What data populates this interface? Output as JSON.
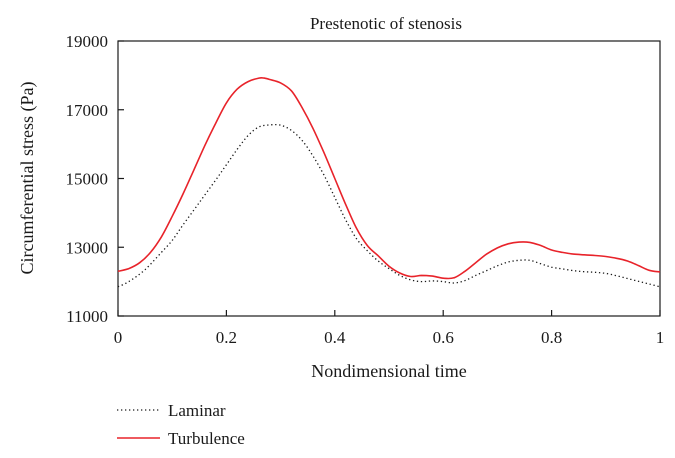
{
  "chart_data": {
    "type": "line",
    "title": "Prestenotic of stenosis",
    "xlabel": "Nondimensional time",
    "ylabel": "Circumferential stress (Pa)",
    "xlim": [
      0,
      1
    ],
    "ylim": [
      11000,
      19000
    ],
    "x_ticks": [
      0,
      0.2,
      0.4,
      0.6,
      0.8,
      1
    ],
    "x_tick_labels": [
      "0",
      "0.2",
      "0.4",
      "0.6",
      "0.8",
      "1"
    ],
    "y_ticks": [
      11000,
      13000,
      15000,
      17000,
      19000
    ],
    "y_tick_labels": [
      "11000",
      "13000",
      "15000",
      "17000",
      "19000"
    ],
    "grid": false,
    "legend_position": "bottom-left",
    "series": [
      {
        "name": "Laminar",
        "color": "#1a1a1a",
        "style": "dotted",
        "x": [
          0,
          0.02,
          0.05,
          0.08,
          0.1,
          0.12,
          0.15,
          0.18,
          0.2,
          0.22,
          0.24,
          0.26,
          0.28,
          0.3,
          0.32,
          0.34,
          0.36,
          0.38,
          0.4,
          0.42,
          0.44,
          0.46,
          0.48,
          0.5,
          0.52,
          0.54,
          0.56,
          0.58,
          0.6,
          0.62,
          0.64,
          0.66,
          0.68,
          0.7,
          0.72,
          0.74,
          0.76,
          0.78,
          0.8,
          0.82,
          0.84,
          0.86,
          0.88,
          0.9,
          0.92,
          0.94,
          0.96,
          0.98,
          1.0
        ],
        "y": [
          11850,
          12000,
          12350,
          12850,
          13200,
          13650,
          14300,
          14950,
          15400,
          15850,
          16250,
          16500,
          16560,
          16550,
          16400,
          16100,
          15650,
          15100,
          14450,
          13800,
          13250,
          12900,
          12600,
          12380,
          12180,
          12050,
          12000,
          12020,
          12000,
          11960,
          12030,
          12180,
          12320,
          12460,
          12570,
          12620,
          12620,
          12520,
          12420,
          12370,
          12320,
          12290,
          12270,
          12240,
          12170,
          12090,
          12010,
          11930,
          11850
        ]
      },
      {
        "name": "Turbulence",
        "color": "#e8232a",
        "style": "solid",
        "x": [
          0,
          0.02,
          0.04,
          0.06,
          0.08,
          0.1,
          0.12,
          0.14,
          0.16,
          0.18,
          0.2,
          0.22,
          0.24,
          0.26,
          0.27,
          0.28,
          0.3,
          0.32,
          0.34,
          0.36,
          0.38,
          0.4,
          0.42,
          0.44,
          0.46,
          0.48,
          0.5,
          0.52,
          0.54,
          0.56,
          0.58,
          0.6,
          0.62,
          0.64,
          0.66,
          0.68,
          0.7,
          0.72,
          0.74,
          0.76,
          0.78,
          0.8,
          0.82,
          0.84,
          0.86,
          0.88,
          0.9,
          0.92,
          0.94,
          0.96,
          0.98,
          1.0
        ],
        "y": [
          12300,
          12380,
          12550,
          12850,
          13300,
          13900,
          14550,
          15250,
          15950,
          16600,
          17200,
          17600,
          17820,
          17920,
          17920,
          17880,
          17780,
          17550,
          17050,
          16450,
          15750,
          15000,
          14250,
          13550,
          13050,
          12750,
          12450,
          12250,
          12150,
          12180,
          12160,
          12100,
          12110,
          12300,
          12550,
          12800,
          12980,
          13100,
          13150,
          13140,
          13050,
          12920,
          12850,
          12800,
          12780,
          12760,
          12730,
          12680,
          12600,
          12470,
          12330,
          12280
        ]
      }
    ]
  }
}
